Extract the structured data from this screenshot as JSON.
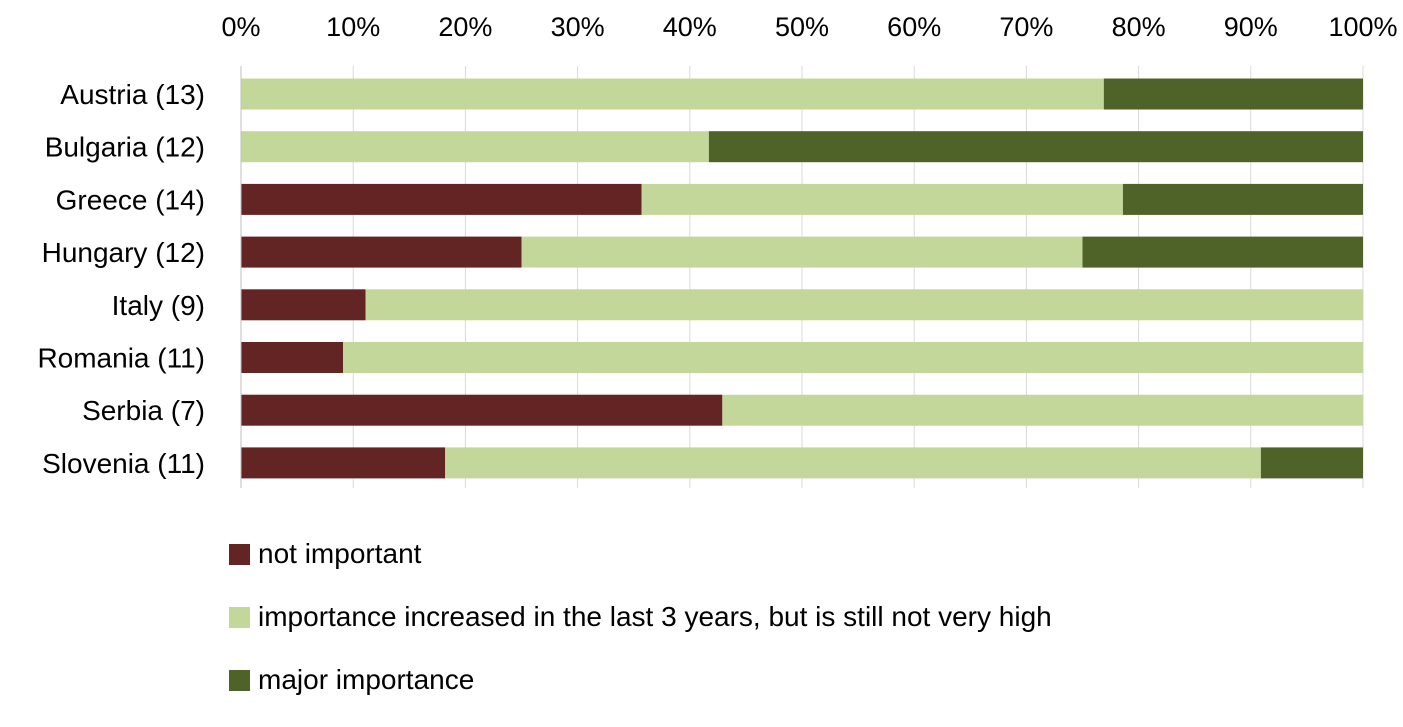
{
  "chart_data": {
    "type": "bar",
    "orientation": "horizontal",
    "stacked": "percent",
    "title": "",
    "xlabel": "",
    "ylabel": "",
    "xlim": [
      0,
      100
    ],
    "x_ticks": [
      "0%",
      "10%",
      "20%",
      "30%",
      "40%",
      "50%",
      "60%",
      "70%",
      "80%",
      "90%",
      "100%"
    ],
    "x_axis_position": "top",
    "grid": true,
    "legend_position": "bottom",
    "categories": [
      "Austria (13)",
      "Bulgaria (12)",
      "Greece (14)",
      "Hungary (12)",
      "Italy (9)",
      "Romania (11)",
      "Serbia (7)",
      "Slovenia (11)"
    ],
    "series": [
      {
        "name": "not important",
        "color": "#632523",
        "values": [
          0,
          0,
          35.7,
          25,
          11.1,
          9.1,
          42.9,
          18.2
        ]
      },
      {
        "name": "importance increased in the last 3 years, but is still not very high",
        "color": "#c4d79b",
        "values": [
          76.9,
          41.7,
          42.9,
          50,
          88.9,
          90.9,
          57.1,
          72.7
        ]
      },
      {
        "name": "major importance",
        "color": "#4f6228",
        "values": [
          23.1,
          58.3,
          21.4,
          25,
          0,
          0,
          0,
          9.1
        ]
      }
    ]
  }
}
